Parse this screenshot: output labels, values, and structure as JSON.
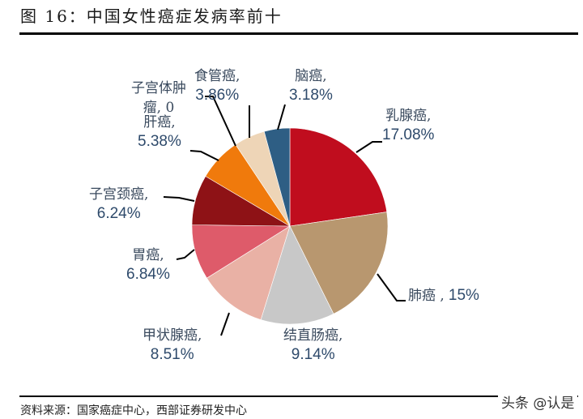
{
  "header": {
    "title": "图 16：中国女性癌症发病率前十"
  },
  "footer": {
    "source": "资料来源：国家癌症中心，西部证券研发中心",
    "watermark": "头条 @认是"
  },
  "chart_data": {
    "type": "pie",
    "title": "图 16：中国女性癌症发病率前十",
    "categories": [
      "乳腺癌",
      "肺癌",
      "结直肠癌",
      "甲状腺癌",
      "胃癌",
      "子宫颈癌",
      "肝癌",
      "子宫体肿瘤",
      "食管癌",
      "脑癌"
    ],
    "values": [
      17.08,
      15,
      9.14,
      8.51,
      6.84,
      6.24,
      5.38,
      0,
      3.86,
      3.18
    ],
    "unit": "%",
    "labels": [
      {
        "name": "乳腺癌,",
        "value": "17.08%"
      },
      {
        "name": "肺癌 ,",
        "value": "15%"
      },
      {
        "name": "结直肠癌,",
        "value": "9.14%"
      },
      {
        "name": "甲状腺癌,",
        "value": "8.51%"
      },
      {
        "name": "胃癌,",
        "value": "6.84%"
      },
      {
        "name": "子宫颈癌,",
        "value": "6.24%"
      },
      {
        "name": "肝癌,",
        "value": "5.38%"
      },
      {
        "name": "子宫体肿瘤,",
        "value": "0"
      },
      {
        "name": "食管癌,",
        "value": "3.86%"
      },
      {
        "name": "脑癌,",
        "value": "3.18%"
      }
    ],
    "colors": [
      "#C00D1E",
      "#B8976F",
      "#C8C8C8",
      "#E9B1A5",
      "#DE5B6A",
      "#8E1216",
      "#F07A0C",
      "#F07A0C",
      "#EED5B7",
      "#2E5E84"
    ],
    "start_angle": "12 o'clock, clockwise",
    "legend": "none (data labels with leader lines)"
  },
  "labels": {
    "breast": {
      "name": "乳腺癌,",
      "value": "17.08%"
    },
    "lung": {
      "name": "肺癌 ,",
      "value": "15%"
    },
    "colorectal": {
      "name": "结直肠癌,",
      "value": "9.14%"
    },
    "thyroid": {
      "name": "甲状腺癌,",
      "value": "8.51%"
    },
    "stomach": {
      "name": "胃癌,",
      "value": "6.84%"
    },
    "cervical": {
      "name": "子宫颈癌,",
      "value": "6.24%"
    },
    "liver": {
      "name": "肝癌,",
      "value": "5.38%"
    },
    "uterine_line1": "子宫体肿",
    "uterine_line2": "瘤, 0",
    "esophageal": {
      "name": "食管癌,",
      "value": "3.86%"
    },
    "brain": {
      "name": "脑癌,",
      "value": "3.18%"
    }
  }
}
